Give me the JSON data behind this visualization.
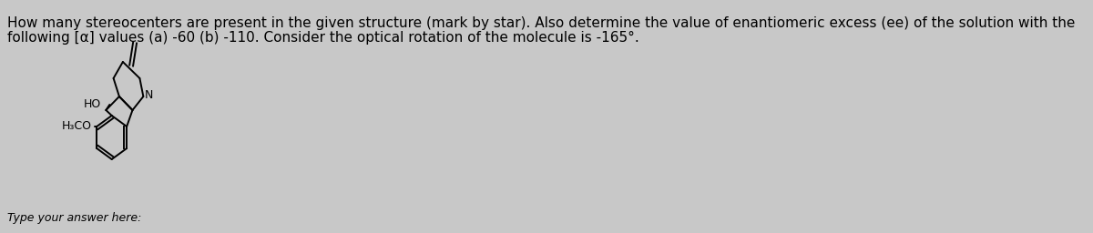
{
  "background_color": "#c8c8c8",
  "title_text_line1": "How many stereocenters are present in the given structure (mark by star). Also determine the value of enantiomeric excess (ee) of the solution with the",
  "title_text_line2": "following [α] values (a) -60 (b) -110. Consider the optical rotation of the molecule is -165°.",
  "footer_text": "Type your answer here:",
  "text_color": "#000000",
  "font_size_title": 11,
  "font_size_footer": 9,
  "label_HO": "HO",
  "label_H3CO": "H₃CO",
  "label_N": "N"
}
